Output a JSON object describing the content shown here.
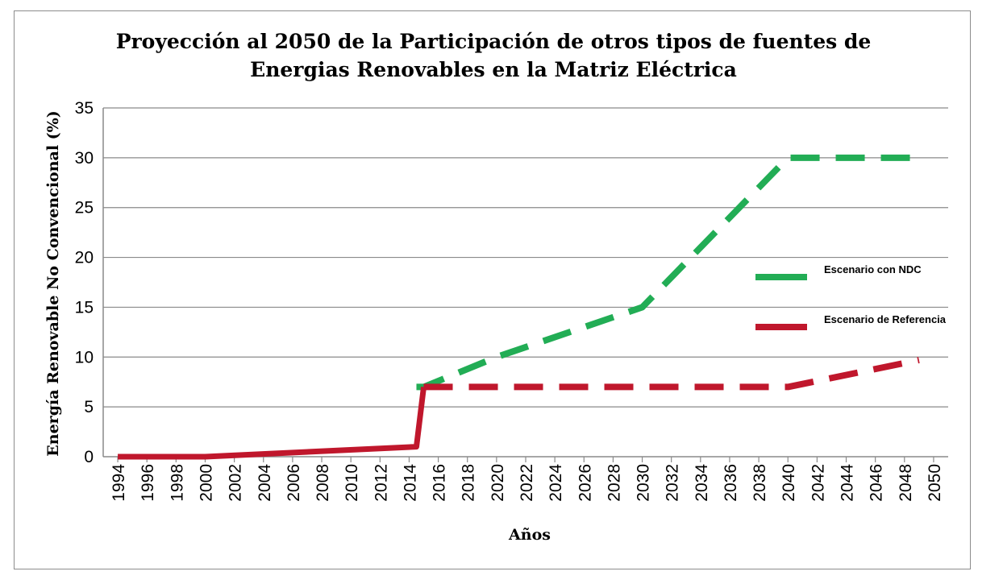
{
  "chart_data": {
    "type": "line",
    "title_line1": "Proyección al 2050 de la Participación de otros tipos de fuentes de",
    "title_line2": "Energias Renovables en la Matriz Eléctrica",
    "xlabel": "Años",
    "ylabel": "Energía Renovable No Convencional (%)",
    "ylim": [
      0,
      35
    ],
    "yticks": [
      0,
      5,
      10,
      15,
      20,
      25,
      30,
      35
    ],
    "xlim": [
      1994,
      2050
    ],
    "xticks": [
      1994,
      1996,
      1998,
      2000,
      2002,
      2004,
      2006,
      2008,
      2010,
      2012,
      2014,
      2016,
      2018,
      2020,
      2022,
      2024,
      2026,
      2028,
      2030,
      2032,
      2034,
      2036,
      2038,
      2040,
      2042,
      2044,
      2046,
      2048,
      2050
    ],
    "grid": "horizontal",
    "legend_position": "right",
    "series": [
      {
        "name": "Escenario con NDC",
        "color": "#22ad55",
        "style": "dashed",
        "x": [
          2014.5,
          2015,
          2020,
          2025,
          2030,
          2035,
          2040,
          2045,
          2049
        ],
        "y": [
          7,
          7,
          10,
          12.5,
          15,
          22.5,
          30,
          30,
          30
        ]
      },
      {
        "name": "Escenario de Referencia",
        "color": "#c0172c",
        "style": "dashed",
        "x": [
          2015,
          2020,
          2025,
          2030,
          2035,
          2040,
          2045,
          2049
        ],
        "y": [
          7,
          7,
          7,
          7,
          7,
          7,
          8.5,
          9.7
        ]
      },
      {
        "name": "",
        "color": "#c0172c",
        "style": "solid",
        "x": [
          1994,
          2000,
          2014.5,
          2015
        ],
        "y": [
          0,
          0,
          1,
          7
        ]
      }
    ]
  }
}
